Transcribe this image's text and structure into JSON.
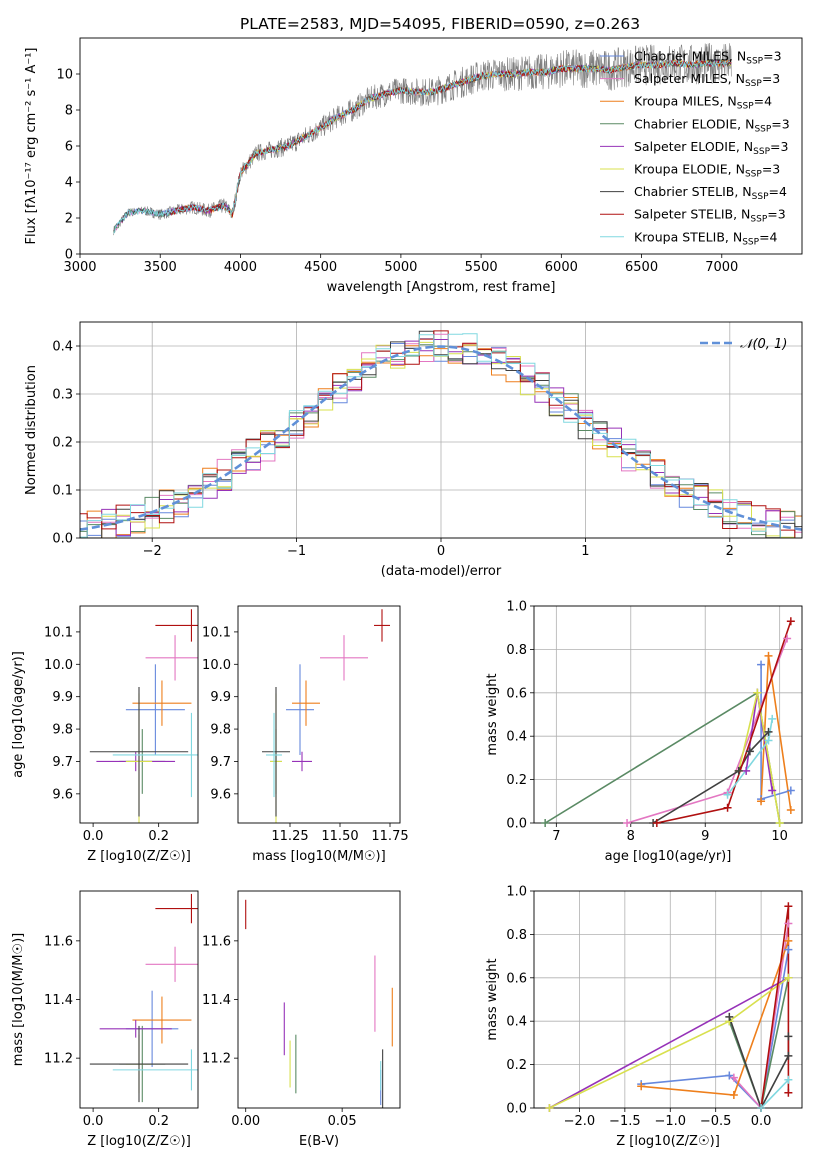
{
  "figure": {
    "title": "PLATE=2583, MJD=54095, FIBERID=0590, z=0.263"
  },
  "colors": {
    "Chabrier MILES": "#6688dd",
    "Salpeter MILES": "#e377c2",
    "Kroupa MILES": "#ee7f1c",
    "Chabrier ELODIE": "#5a8a64",
    "Salpeter ELODIE": "#9632b8",
    "Kroupa ELODIE": "#d8e04e",
    "Chabrier STELIB": "#404040",
    "Salpeter STELIB": "#b01010",
    "Kroupa STELIB": "#80d8e0",
    "data": "#7f7f7f",
    "normal": "#6090d8"
  },
  "chart_data": [
    {
      "id": "spectrum",
      "type": "line",
      "xlabel": "wavelength [Angstrom, rest frame]",
      "ylabel": "Flux [fλ10⁻¹⁷ erg cm⁻² s⁻¹ A⁻¹]",
      "xlim": [
        3000,
        7500
      ],
      "ylim": [
        0,
        12
      ],
      "xticks": [
        3000,
        3500,
        4000,
        4500,
        5000,
        5500,
        6000,
        6500,
        7000
      ],
      "yticks": [
        0,
        2,
        4,
        6,
        8,
        10
      ],
      "legend": [
        {
          "name": "Chabrier MILES",
          "nssp": "3"
        },
        {
          "name": "Salpeter MILES",
          "nssp": "3"
        },
        {
          "name": "Kroupa MILES",
          "nssp": "4"
        },
        {
          "name": "Chabrier ELODIE",
          "nssp": "3"
        },
        {
          "name": "Salpeter ELODIE",
          "nssp": "3"
        },
        {
          "name": "Kroupa ELODIE",
          "nssp": "3"
        },
        {
          "name": "Chabrier STELIB",
          "nssp": "4"
        },
        {
          "name": "Salpeter STELIB",
          "nssp": "3"
        },
        {
          "name": "Kroupa STELIB",
          "nssp": "4"
        }
      ],
      "legend_placement": "upper right",
      "continuum": {
        "wavelength": [
          3210,
          3300,
          3400,
          3500,
          3600,
          3700,
          3800,
          3900,
          3950,
          4000,
          4100,
          4200,
          4300,
          4400,
          4500,
          4600,
          4700,
          4800,
          4900,
          5000,
          5100,
          5200,
          5300,
          5400,
          5500,
          5600,
          5700,
          5800,
          5900,
          6000,
          6100,
          6200,
          6300,
          6400,
          6500,
          6600,
          6700,
          6800,
          6900,
          7000,
          7060
        ],
        "flux": [
          1.3,
          2.3,
          2.4,
          2.2,
          2.4,
          2.6,
          2.4,
          2.7,
          2.2,
          4.5,
          5.6,
          5.8,
          6.0,
          6.5,
          7.0,
          7.6,
          8.0,
          8.6,
          8.9,
          9.1,
          9.0,
          9.0,
          9.3,
          9.6,
          9.9,
          10.0,
          10.0,
          10.1,
          10.1,
          10.3,
          10.3,
          10.3,
          10.2,
          10.4,
          10.5,
          10.5,
          10.6,
          10.5,
          10.6,
          10.6,
          10.6
        ]
      }
    },
    {
      "id": "residuals",
      "type": "line",
      "xlabel": "(data-model)/error",
      "ylabel": "Normed distribution",
      "xlim": [
        -2.5,
        2.5
      ],
      "ylim": [
        0,
        0.45
      ],
      "xticks": [
        -2,
        -1,
        0,
        1,
        2
      ],
      "yticks": [
        0.0,
        0.1,
        0.2,
        0.3,
        0.4
      ],
      "legend": [
        "𝒩(0, 1)"
      ],
      "legend_placement": "upper right",
      "series_note": "9 step histograms (one per model) plus dashed N(0,1) curve",
      "bin_width": 0.1
    },
    {
      "id": "age_vs_Z",
      "type": "scatter",
      "xlabel": "Z [log10(Z/Z☉)]",
      "ylabel": "age  [log10(age/yr)]",
      "xlim": [
        -0.04,
        0.32
      ],
      "ylim": [
        9.51,
        10.18
      ],
      "xticks": [
        0.0,
        0.2
      ],
      "yticks": [
        9.6,
        9.7,
        9.8,
        9.9,
        10.0,
        10.1
      ],
      "points": [
        {
          "model": "Chabrier MILES",
          "x": 0.19,
          "xerr": 0.09,
          "y": 9.86,
          "yerr": 0.14
        },
        {
          "model": "Salpeter MILES",
          "x": 0.25,
          "xerr": 0.09,
          "y": 10.02,
          "yerr": 0.07
        },
        {
          "model": "Kroupa MILES",
          "x": 0.21,
          "xerr": 0.09,
          "y": 9.88,
          "yerr": 0.07
        },
        {
          "model": "Chabrier ELODIE",
          "x": 0.15,
          "xerr": 0.07,
          "y": 9.7,
          "yerr": 0.1
        },
        {
          "model": "Salpeter ELODIE",
          "x": 0.13,
          "xerr": 0.12,
          "y": 9.7,
          "yerr": 0.03
        },
        {
          "model": "Kroupa ELODIE",
          "x": 0.14,
          "xerr": 0.04,
          "y": 9.7,
          "yerr": 0.21
        },
        {
          "model": "Chabrier STELIB",
          "x": 0.14,
          "xerr": 0.15,
          "y": 9.73,
          "yerr": 0.2
        },
        {
          "model": "Salpeter STELIB",
          "x": 0.3,
          "xerr": 0.11,
          "y": 10.12,
          "yerr": 0.05
        },
        {
          "model": "Kroupa STELIB",
          "x": 0.3,
          "xerr": 0.24,
          "y": 9.72,
          "yerr": 0.13
        }
      ]
    },
    {
      "id": "age_vs_mass",
      "type": "scatter",
      "xlabel": "mass [log10(M/M☉)]",
      "ylabel": "",
      "xlim": [
        10.99,
        11.8
      ],
      "ylim": [
        9.51,
        10.18
      ],
      "xticks": [
        11.25,
        11.5,
        11.75
      ],
      "yticks": [
        9.6,
        9.7,
        9.8,
        9.9,
        10.0,
        10.1
      ],
      "points": [
        {
          "model": "Chabrier MILES",
          "x": 11.3,
          "xerr": 0.07,
          "y": 9.86,
          "yerr": 0.14
        },
        {
          "model": "Salpeter MILES",
          "x": 11.52,
          "xerr": 0.12,
          "y": 10.02,
          "yerr": 0.07
        },
        {
          "model": "Kroupa MILES",
          "x": 11.33,
          "xerr": 0.07,
          "y": 9.88,
          "yerr": 0.07
        },
        {
          "model": "Chabrier ELODIE",
          "x": 11.18,
          "xerr": 0.03,
          "y": 9.7,
          "yerr": 0.1
        },
        {
          "model": "Salpeter ELODIE",
          "x": 11.31,
          "xerr": 0.05,
          "y": 9.7,
          "yerr": 0.03
        },
        {
          "model": "Kroupa ELODIE",
          "x": 11.18,
          "xerr": 0.03,
          "y": 9.7,
          "yerr": 0.21
        },
        {
          "model": "Chabrier STELIB",
          "x": 11.18,
          "xerr": 0.07,
          "y": 9.73,
          "yerr": 0.2
        },
        {
          "model": "Salpeter STELIB",
          "x": 11.71,
          "xerr": 0.04,
          "y": 10.12,
          "yerr": 0.05
        },
        {
          "model": "Kroupa STELIB",
          "x": 11.17,
          "xerr": 0.04,
          "y": 9.72,
          "yerr": 0.13
        }
      ]
    },
    {
      "id": "weight_vs_age",
      "type": "line",
      "xlabel": "age  [log10(age/yr)]",
      "ylabel": "mass weight",
      "xlim": [
        6.7,
        10.3
      ],
      "ylim": [
        0,
        1.0
      ],
      "xticks": [
        7,
        8,
        9,
        10
      ],
      "yticks": [
        0.0,
        0.2,
        0.4,
        0.6,
        0.8,
        1.0
      ],
      "grid": true,
      "series": [
        {
          "model": "Chabrier MILES",
          "x": [
            9.75,
            9.75,
            10.15
          ],
          "y": [
            0.73,
            0.11,
            0.15
          ]
        },
        {
          "model": "Salpeter MILES",
          "x": [
            7.95,
            9.3,
            10.1
          ],
          "y": [
            0.0,
            0.14,
            0.85
          ]
        },
        {
          "model": "Kroupa MILES",
          "x": [
            9.75,
            9.85,
            10.15
          ],
          "y": [
            0.1,
            0.77,
            0.06
          ]
        },
        {
          "model": "Chabrier ELODIE",
          "x": [
            6.85,
            9.7,
            10.0
          ],
          "y": [
            0.0,
            0.6,
            0.0
          ]
        },
        {
          "model": "Salpeter ELODIE",
          "x": [
            9.55,
            9.7,
            9.9
          ],
          "y": [
            0.24,
            0.6,
            0.15
          ]
        },
        {
          "model": "Kroupa ELODIE",
          "x": [
            9.45,
            9.7,
            10.0
          ],
          "y": [
            0.24,
            0.6,
            0.0
          ]
        },
        {
          "model": "Chabrier STELIB",
          "x": [
            8.3,
            9.45,
            9.6,
            9.85
          ],
          "y": [
            0.0,
            0.24,
            0.33,
            0.42
          ]
        },
        {
          "model": "Salpeter STELIB",
          "x": [
            8.35,
            9.3,
            10.15
          ],
          "y": [
            0.0,
            0.07,
            0.93
          ]
        },
        {
          "model": "Kroupa STELIB",
          "x": [
            9.3,
            9.85,
            9.9
          ],
          "y": [
            0.13,
            0.38,
            0.48
          ]
        }
      ]
    },
    {
      "id": "mass_vs_Z",
      "type": "scatter",
      "xlabel": "Z [log10(Z/Z☉)]",
      "ylabel": "mass [log10(M/M☉)]",
      "xlim": [
        -0.04,
        0.32
      ],
      "ylim": [
        11.03,
        11.77
      ],
      "xticks": [
        0.0,
        0.2
      ],
      "yticks": [
        11.2,
        11.4,
        11.6
      ],
      "points": [
        {
          "model": "Chabrier MILES",
          "x": 0.18,
          "xerr": 0.08,
          "y": 11.3,
          "yerr": 0.13
        },
        {
          "model": "Salpeter MILES",
          "x": 0.25,
          "xerr": 0.09,
          "y": 11.52,
          "yerr": 0.06
        },
        {
          "model": "Kroupa MILES",
          "x": 0.21,
          "xerr": 0.09,
          "y": 11.33,
          "yerr": 0.08
        },
        {
          "model": "Chabrier ELODIE",
          "x": 0.15,
          "xerr": 0.07,
          "y": 11.18,
          "yerr": 0.13
        },
        {
          "model": "Salpeter ELODIE",
          "x": 0.13,
          "xerr": 0.11,
          "y": 11.3,
          "yerr": 0.03
        },
        {
          "model": "Kroupa ELODIE",
          "x": 0.14,
          "xerr": 0.04,
          "y": 11.18,
          "yerr": 0.1
        },
        {
          "model": "Chabrier STELIB",
          "x": 0.14,
          "xerr": 0.15,
          "y": 11.18,
          "yerr": 0.13
        },
        {
          "model": "Salpeter STELIB",
          "x": 0.3,
          "xerr": 0.11,
          "y": 11.71,
          "yerr": 0.05
        },
        {
          "model": "Kroupa STELIB",
          "x": 0.3,
          "xerr": 0.24,
          "y": 11.16,
          "yerr": 0.07
        }
      ]
    },
    {
      "id": "mass_vs_ebv",
      "type": "scatter",
      "xlabel": "E(B-V)",
      "ylabel": "",
      "xlim": [
        -0.004,
        0.08
      ],
      "ylim": [
        11.03,
        11.77
      ],
      "xticks": [
        0.0,
        0.05
      ],
      "yticks": [
        11.2,
        11.4,
        11.6
      ],
      "points": [
        {
          "model": "Chabrier MILES",
          "x": 0.07,
          "y": 11.1,
          "yerr": 0.06
        },
        {
          "model": "Salpeter MILES",
          "x": 0.067,
          "y": 11.42,
          "yerr": 0.13
        },
        {
          "model": "Kroupa MILES",
          "x": 0.076,
          "y": 11.34,
          "yerr": 0.1
        },
        {
          "model": "Chabrier ELODIE",
          "x": 0.026,
          "y": 11.18,
          "yerr": 0.1
        },
        {
          "model": "Salpeter ELODIE",
          "x": 0.02,
          "y": 11.3,
          "yerr": 0.09
        },
        {
          "model": "Kroupa ELODIE",
          "x": 0.023,
          "y": 11.18,
          "yerr": 0.08
        },
        {
          "model": "Chabrier STELIB",
          "x": 0.071,
          "y": 11.12,
          "yerr": 0.11
        },
        {
          "model": "Salpeter STELIB",
          "x": 0.0,
          "y": 11.69,
          "yerr": 0.05
        },
        {
          "model": "Kroupa STELIB",
          "x": 0.07,
          "y": 11.14,
          "yerr": 0.05
        }
      ]
    },
    {
      "id": "weight_vs_Z",
      "type": "line",
      "xlabel": "Z [log10(Z/Z☉)]",
      "ylabel": "mass weight",
      "xlim": [
        -2.5,
        0.45
      ],
      "ylim": [
        0,
        1.0
      ],
      "xticks": [
        -2.0,
        -1.5,
        -1.0,
        -0.5,
        0.0
      ],
      "yticks": [
        0.0,
        0.2,
        0.4,
        0.6,
        0.8,
        1.0
      ],
      "grid": true,
      "series": [
        {
          "model": "Chabrier MILES",
          "x": [
            -1.32,
            -0.35,
            0.0,
            0.3
          ],
          "y": [
            0.11,
            0.15,
            0.0,
            0.73
          ]
        },
        {
          "model": "Salpeter MILES",
          "x": [
            -0.3,
            0.0,
            0.3
          ],
          "y": [
            0.14,
            0.0,
            0.85
          ]
        },
        {
          "model": "Kroupa MILES",
          "x": [
            -1.32,
            -0.3,
            0.3
          ],
          "y": [
            0.1,
            0.06,
            0.77
          ]
        },
        {
          "model": "Chabrier ELODIE",
          "x": [
            -0.35,
            0.0,
            0.3
          ],
          "y": [
            0.4,
            0.0,
            0.6
          ]
        },
        {
          "model": "Salpeter ELODIE",
          "x": [
            -2.33,
            0.3
          ],
          "y": [
            0.0,
            0.6
          ]
        },
        {
          "model": "Kroupa ELODIE",
          "x": [
            -2.33,
            -0.35,
            0.3
          ],
          "y": [
            0.0,
            0.4,
            0.6
          ]
        },
        {
          "model": "Chabrier STELIB",
          "x": [
            -0.35,
            0.0,
            0.3,
            0.3
          ],
          "y": [
            0.42,
            0.0,
            0.24,
            0.33
          ]
        },
        {
          "model": "Salpeter STELIB",
          "x": [
            0.0,
            0.3,
            0.3
          ],
          "y": [
            0.0,
            0.93,
            0.07
          ]
        },
        {
          "model": "Kroupa STELIB",
          "x": [
            0.0,
            0.3
          ],
          "y": [
            0.0,
            0.13
          ]
        }
      ]
    }
  ]
}
